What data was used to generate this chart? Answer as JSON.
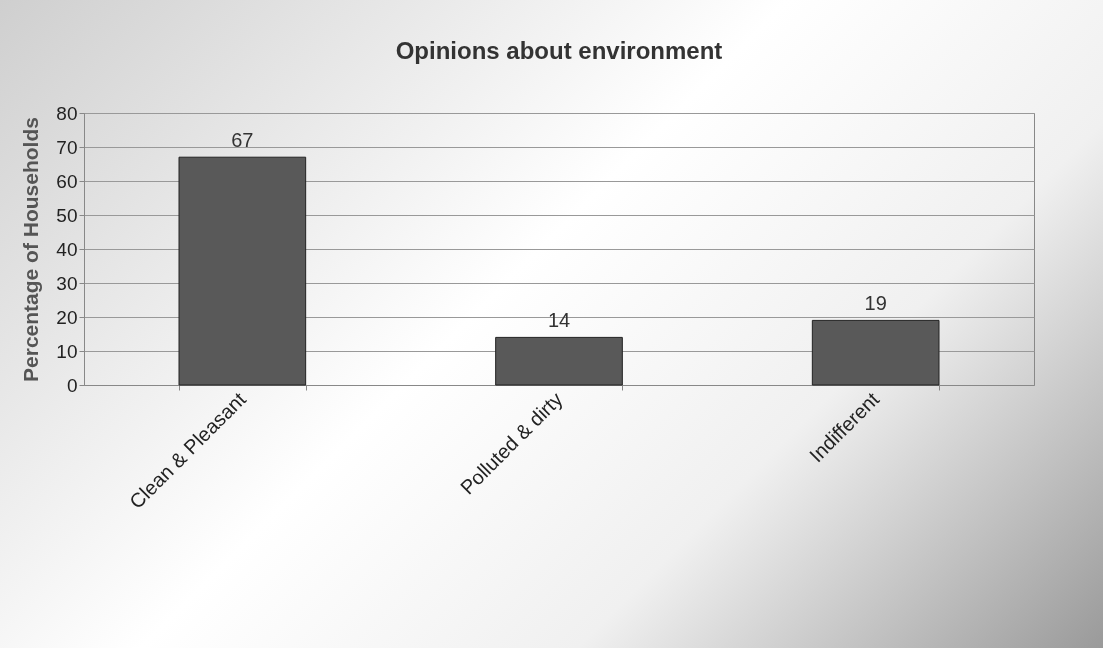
{
  "chart_data": {
    "type": "bar",
    "title": "Opinions about environment",
    "ylabel": "Percentage of Households",
    "categories": [
      "Clean & Pleasant",
      "Polluted & dirty",
      "Indifferent"
    ],
    "values": [
      67,
      14,
      19
    ],
    "color": "#595959",
    "ylim": [
      0,
      80
    ],
    "yticks": [
      0,
      10,
      20,
      30,
      40,
      50,
      60,
      70,
      80
    ],
    "grid": "y",
    "data_labels": true
  }
}
